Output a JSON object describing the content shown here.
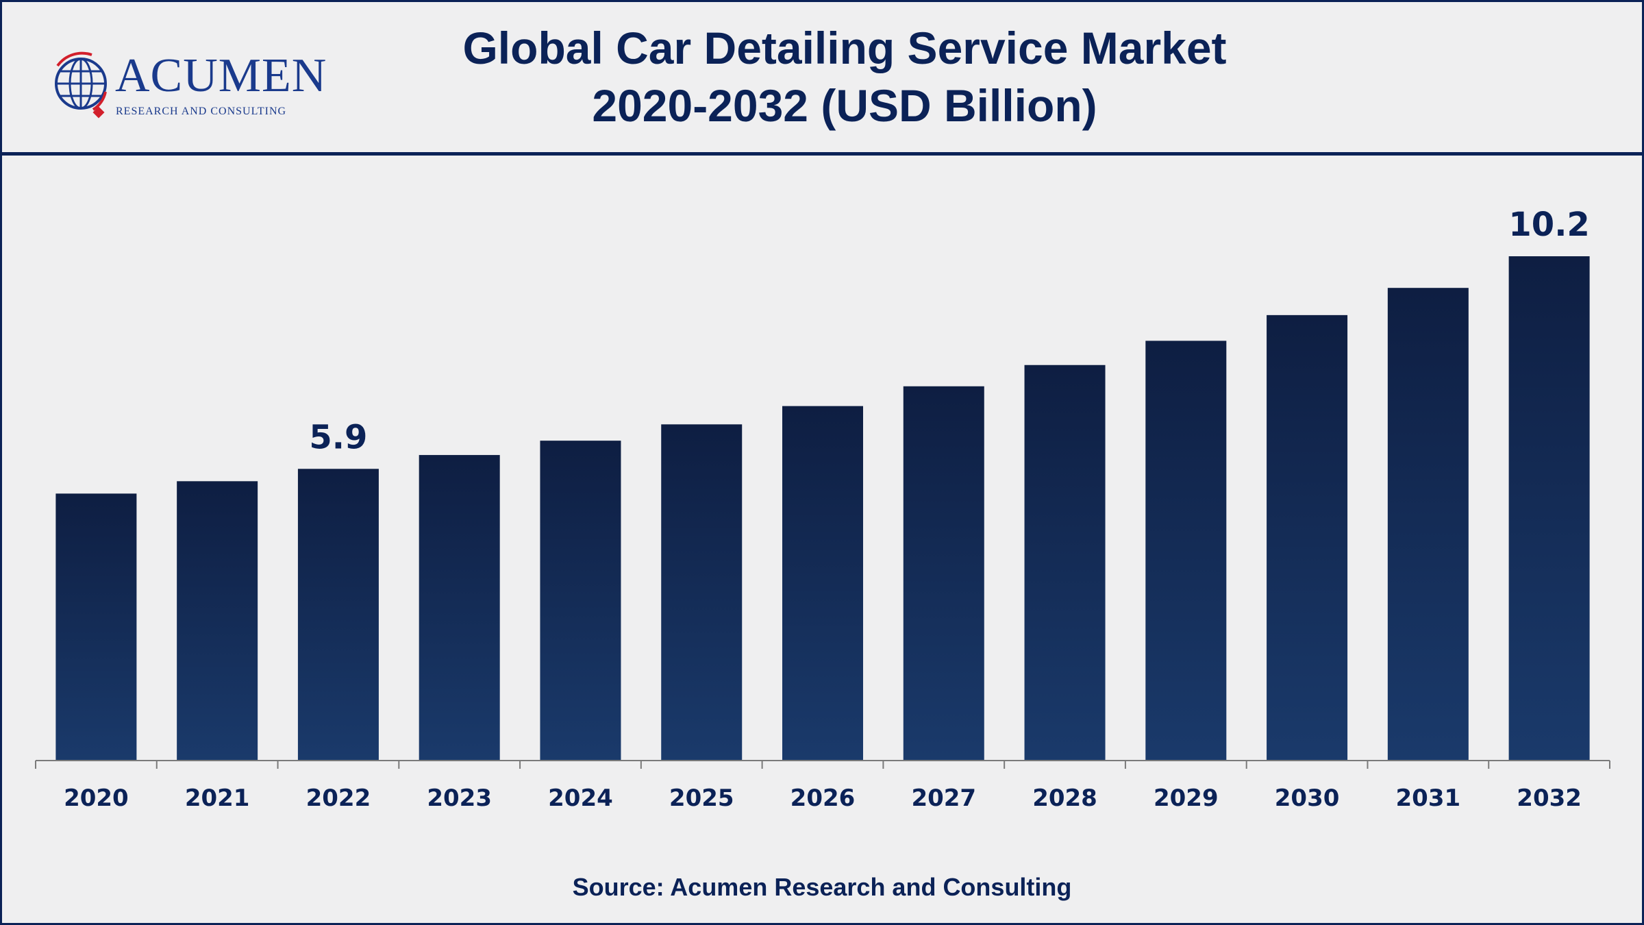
{
  "header": {
    "title_line1": "Global Car Detailing Service Market",
    "title_line2": "2020-2032 (USD Billion)"
  },
  "logo": {
    "wordmark": "ACUMEN",
    "tagline": "RESEARCH AND CONSULTING"
  },
  "footer": {
    "source": "Source: Acumen Research and Consulting"
  },
  "colors": {
    "bar_top": "#0e1e42",
    "bar_bottom": "#1a3a6b",
    "text": "#0b2257",
    "axis": "#7a7a7a"
  },
  "chart_data": {
    "type": "bar",
    "title": "Global Car Detailing Service Market 2020-2032 (USD Billion)",
    "xlabel": "",
    "ylabel": "",
    "categories": [
      "2020",
      "2021",
      "2022",
      "2023",
      "2024",
      "2025",
      "2026",
      "2027",
      "2028",
      "2029",
      "2030",
      "2031",
      "2032"
    ],
    "values": [
      5.4,
      5.65,
      5.9,
      6.18,
      6.47,
      6.8,
      7.17,
      7.57,
      8.0,
      8.49,
      9.01,
      9.56,
      10.2
    ],
    "data_labels": [
      {
        "category": "2022",
        "text": "5.9"
      },
      {
        "category": "2032",
        "text": "10.2"
      }
    ],
    "ylim": [
      0,
      10.2
    ],
    "grid": false,
    "legend": "none"
  }
}
